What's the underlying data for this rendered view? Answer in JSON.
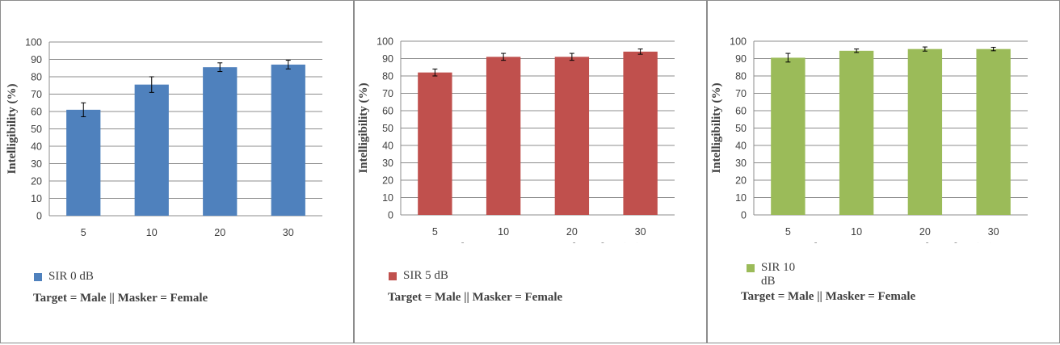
{
  "chart_data": [
    {
      "type": "bar",
      "categories": [
        "5",
        "10",
        "20",
        "30"
      ],
      "series": [
        {
          "name": "SIR 0 dB",
          "values": [
            61,
            75.5,
            85.5,
            87
          ],
          "error": [
            4,
            4.5,
            2.5,
            2.5
          ]
        }
      ],
      "xlabel": "Angle Between Target and Masker ( ° )",
      "ylabel": "Intelligibility (%)",
      "ylim": [
        0,
        100
      ],
      "yticks": [
        "0",
        "10",
        "20",
        "30",
        "40",
        "50",
        "60",
        "70",
        "80",
        "90",
        "100"
      ],
      "grid": true,
      "color": "#4f81bd",
      "legend_label": "SIR 0 dB",
      "caption": "Target = Male || Masker = Female"
    },
    {
      "type": "bar",
      "categories": [
        "5",
        "10",
        "20",
        "30"
      ],
      "series": [
        {
          "name": "SIR 5 dB",
          "values": [
            82,
            91,
            91,
            94
          ],
          "error": [
            2,
            2,
            2,
            1.5
          ]
        }
      ],
      "xlabel": "Angle Between Target and Masker ( ° )",
      "ylabel": "Intelligibility (%)",
      "ylim": [
        0,
        100
      ],
      "yticks": [
        "0",
        "10",
        "20",
        "30",
        "40",
        "50",
        "60",
        "70",
        "80",
        "90",
        "100"
      ],
      "grid": true,
      "color": "#c0504d",
      "legend_label": "SIR 5 dB",
      "caption": "Target = Male || Masker = Female"
    },
    {
      "type": "bar",
      "categories": [
        "5",
        "10",
        "20",
        "30"
      ],
      "series": [
        {
          "name": "SIR 10 dB",
          "values": [
            90.5,
            94.5,
            95.5,
            95.5
          ],
          "error": [
            2.5,
            1,
            1.2,
            1
          ]
        }
      ],
      "xlabel": "Angle Between Target and Masker ( ° )",
      "ylabel": "Intelligibility (%)",
      "ylim": [
        0,
        100
      ],
      "yticks": [
        "0",
        "10",
        "20",
        "30",
        "40",
        "50",
        "60",
        "70",
        "80",
        "90",
        "100"
      ],
      "grid": true,
      "color": "#9bbb59",
      "legend_label": "SIR 10 dB",
      "caption": "Target = Male || Masker = Female"
    }
  ]
}
